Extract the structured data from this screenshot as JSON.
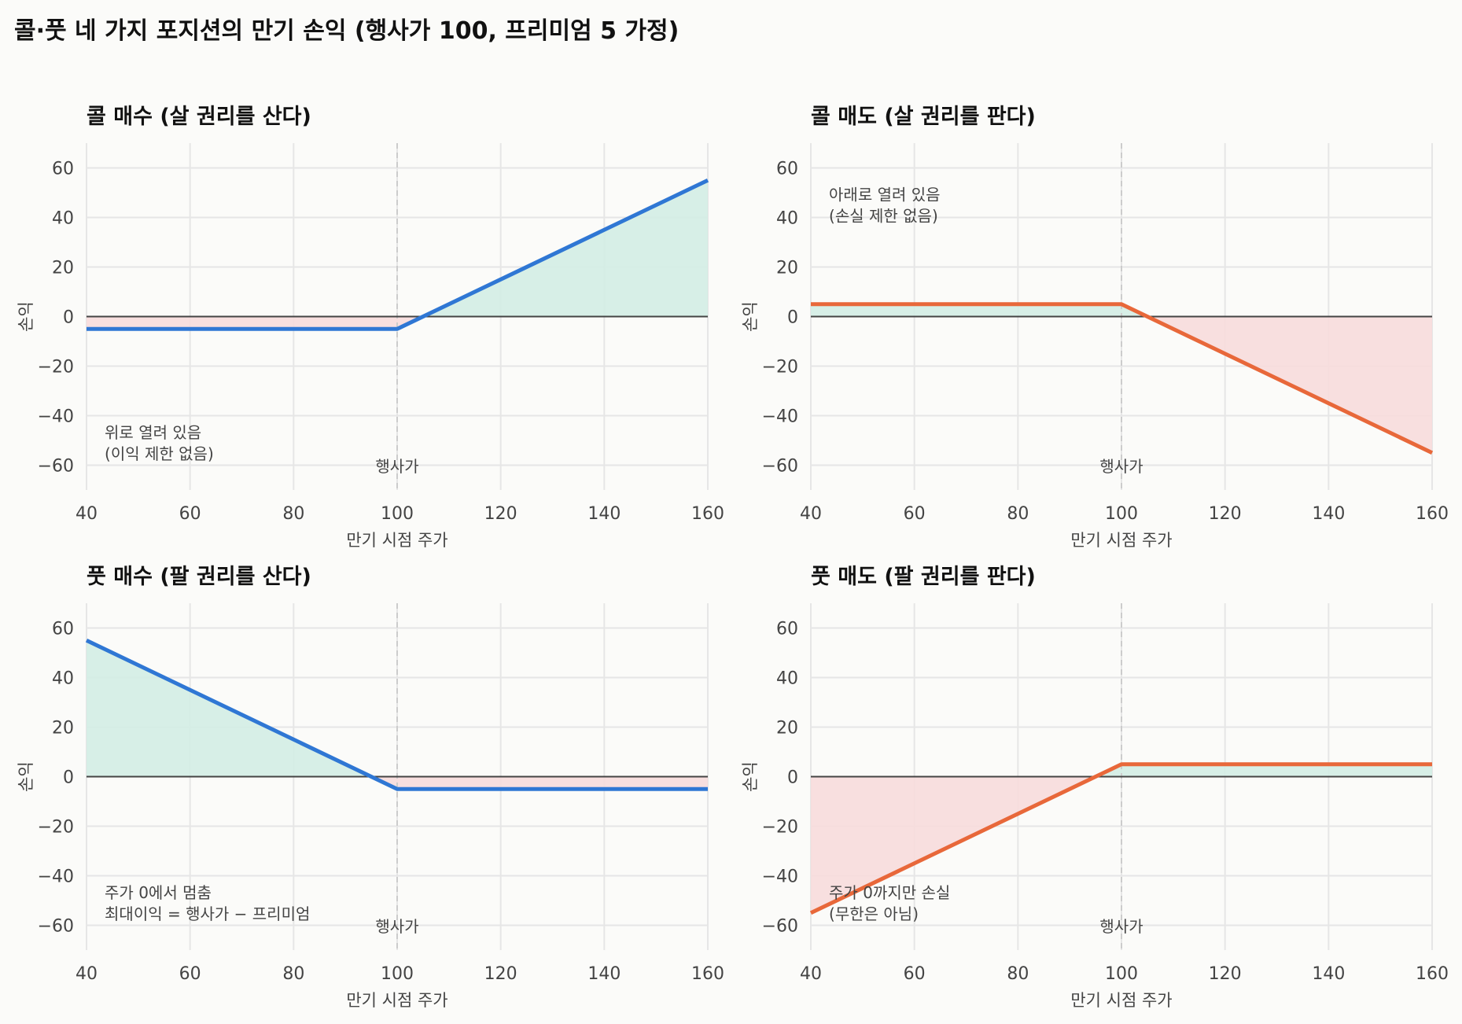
{
  "suptitle": "콜·풋 네 가지 포지션의 만기 손익  (행사가 100, 프리미엄 5 가정)",
  "colors": {
    "long_line": "#2f77d4",
    "short_line": "#e8683a",
    "profit_fill": "#d3ede4",
    "loss_fill": "#f7dbdb",
    "zero_line": "#444444",
    "grid": "#e6e6e6",
    "strike_line": "#cccccc"
  },
  "chart_data": [
    {
      "type": "line",
      "title": "콜 매수 (살 권리를 산다)",
      "xlabel": "만기 시점 주가",
      "ylabel": "손익",
      "xlim": [
        40,
        160
      ],
      "ylim": [
        -70,
        70
      ],
      "xticks": [
        40,
        60,
        80,
        100,
        120,
        140,
        160
      ],
      "yticks": [
        -60,
        -40,
        -20,
        0,
        20,
        40,
        60
      ],
      "tick_labels": {
        "x": [
          "40",
          "60",
          "80",
          "100",
          "120",
          "140",
          "160"
        ],
        "y": [
          "−60",
          "−40",
          "−20",
          "0",
          "20",
          "40",
          "60"
        ]
      },
      "grid": true,
      "strike": 100,
      "strike_label": "행사가",
      "line_color": "long_line",
      "series": [
        {
          "x": [
            40,
            100,
            160
          ],
          "y": [
            -5,
            -5,
            55
          ]
        }
      ],
      "annotation": {
        "lines": [
          "위로 열려 있음",
          "(이익 제한 없음)"
        ],
        "x": 43.5,
        "y": -49
      }
    },
    {
      "type": "line",
      "title": "콜 매도 (살 권리를 판다)",
      "xlabel": "만기 시점 주가",
      "ylabel": "손익",
      "xlim": [
        40,
        160
      ],
      "ylim": [
        -70,
        70
      ],
      "xticks": [
        40,
        60,
        80,
        100,
        120,
        140,
        160
      ],
      "yticks": [
        -60,
        -40,
        -20,
        0,
        20,
        40,
        60
      ],
      "tick_labels": {
        "x": [
          "40",
          "60",
          "80",
          "100",
          "120",
          "140",
          "160"
        ],
        "y": [
          "−60",
          "−40",
          "−20",
          "0",
          "20",
          "40",
          "60"
        ]
      },
      "grid": true,
      "strike": 100,
      "strike_label": "행사가",
      "line_color": "short_line",
      "series": [
        {
          "x": [
            40,
            100,
            160
          ],
          "y": [
            5,
            5,
            -55
          ]
        }
      ],
      "annotation": {
        "lines": [
          "아래로 열려 있음",
          "(손실 제한 없음)"
        ],
        "x": 43.5,
        "y": 47
      }
    },
    {
      "type": "line",
      "title": "풋 매수 (팔 권리를 산다)",
      "xlabel": "만기 시점 주가",
      "ylabel": "손익",
      "xlim": [
        40,
        160
      ],
      "ylim": [
        -70,
        70
      ],
      "xticks": [
        40,
        60,
        80,
        100,
        120,
        140,
        160
      ],
      "yticks": [
        -60,
        -40,
        -20,
        0,
        20,
        40,
        60
      ],
      "tick_labels": {
        "x": [
          "40",
          "60",
          "80",
          "100",
          "120",
          "140",
          "160"
        ],
        "y": [
          "−60",
          "−40",
          "−20",
          "0",
          "20",
          "40",
          "60"
        ]
      },
      "grid": true,
      "strike": 100,
      "strike_label": "행사가",
      "line_color": "long_line",
      "series": [
        {
          "x": [
            40,
            100,
            160
          ],
          "y": [
            55,
            -5,
            -5
          ]
        }
      ],
      "annotation": {
        "lines": [
          "주가 0에서 멈춤",
          "최대이익 = 행사가 − 프리미엄"
        ],
        "x": 43.5,
        "y": -49
      }
    },
    {
      "type": "line",
      "title": "풋 매도 (팔 권리를 판다)",
      "xlabel": "만기 시점 주가",
      "ylabel": "손익",
      "xlim": [
        40,
        160
      ],
      "ylim": [
        -70,
        70
      ],
      "xticks": [
        40,
        60,
        80,
        100,
        120,
        140,
        160
      ],
      "yticks": [
        -60,
        -40,
        -20,
        0,
        20,
        40,
        60
      ],
      "tick_labels": {
        "x": [
          "40",
          "60",
          "80",
          "100",
          "120",
          "140",
          "160"
        ],
        "y": [
          "−60",
          "−40",
          "−20",
          "0",
          "20",
          "40",
          "60"
        ]
      },
      "grid": true,
      "strike": 100,
      "strike_label": "행사가",
      "line_color": "short_line",
      "series": [
        {
          "x": [
            40,
            100,
            160
          ],
          "y": [
            -55,
            5,
            5
          ]
        }
      ],
      "annotation": {
        "lines": [
          "주가 0까지만 손실",
          "(무한은 아님)"
        ],
        "x": 43.5,
        "y": -49
      }
    }
  ]
}
